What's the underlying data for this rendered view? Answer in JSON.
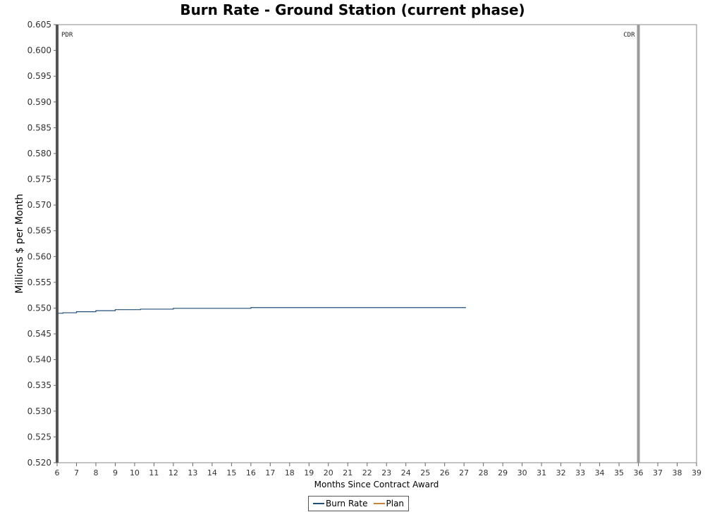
{
  "chart_data": {
    "type": "line",
    "title": "Burn Rate - Ground Station (current phase)",
    "xlabel": "Months Since Contract Award",
    "ylabel": "Millions $ per Month",
    "xlim": [
      6,
      39
    ],
    "ylim": [
      0.52,
      0.605
    ],
    "x_ticks": [
      6,
      7,
      8,
      9,
      10,
      11,
      12,
      13,
      14,
      15,
      16,
      17,
      18,
      19,
      20,
      21,
      22,
      23,
      24,
      25,
      26,
      27,
      28,
      29,
      30,
      31,
      32,
      33,
      34,
      35,
      36,
      37,
      38,
      39
    ],
    "y_ticks": [
      0.52,
      0.525,
      0.53,
      0.535,
      0.54,
      0.545,
      0.55,
      0.555,
      0.56,
      0.565,
      0.57,
      0.575,
      0.58,
      0.585,
      0.59,
      0.595,
      0.6,
      0.605
    ],
    "y_tick_decimals": 3,
    "grid": false,
    "legend_position": "bottom-center",
    "series": [
      {
        "name": "Burn Rate",
        "color": "#1f4e79",
        "step": true,
        "x": [
          6,
          6.3,
          7,
          8,
          9,
          10.3,
          12,
          16,
          27.1
        ],
        "y": [
          0.549,
          0.5491,
          0.5493,
          0.5495,
          0.5497,
          0.5498,
          0.54995,
          0.5501,
          0.5501
        ]
      },
      {
        "name": "Plan",
        "color": "#c8843a",
        "step": false,
        "x": [],
        "y": []
      }
    ],
    "markers": [
      {
        "label": "PDR",
        "x": 6,
        "color": "#555555"
      },
      {
        "label": "CDR",
        "x": 36,
        "color": "#999999"
      }
    ]
  }
}
